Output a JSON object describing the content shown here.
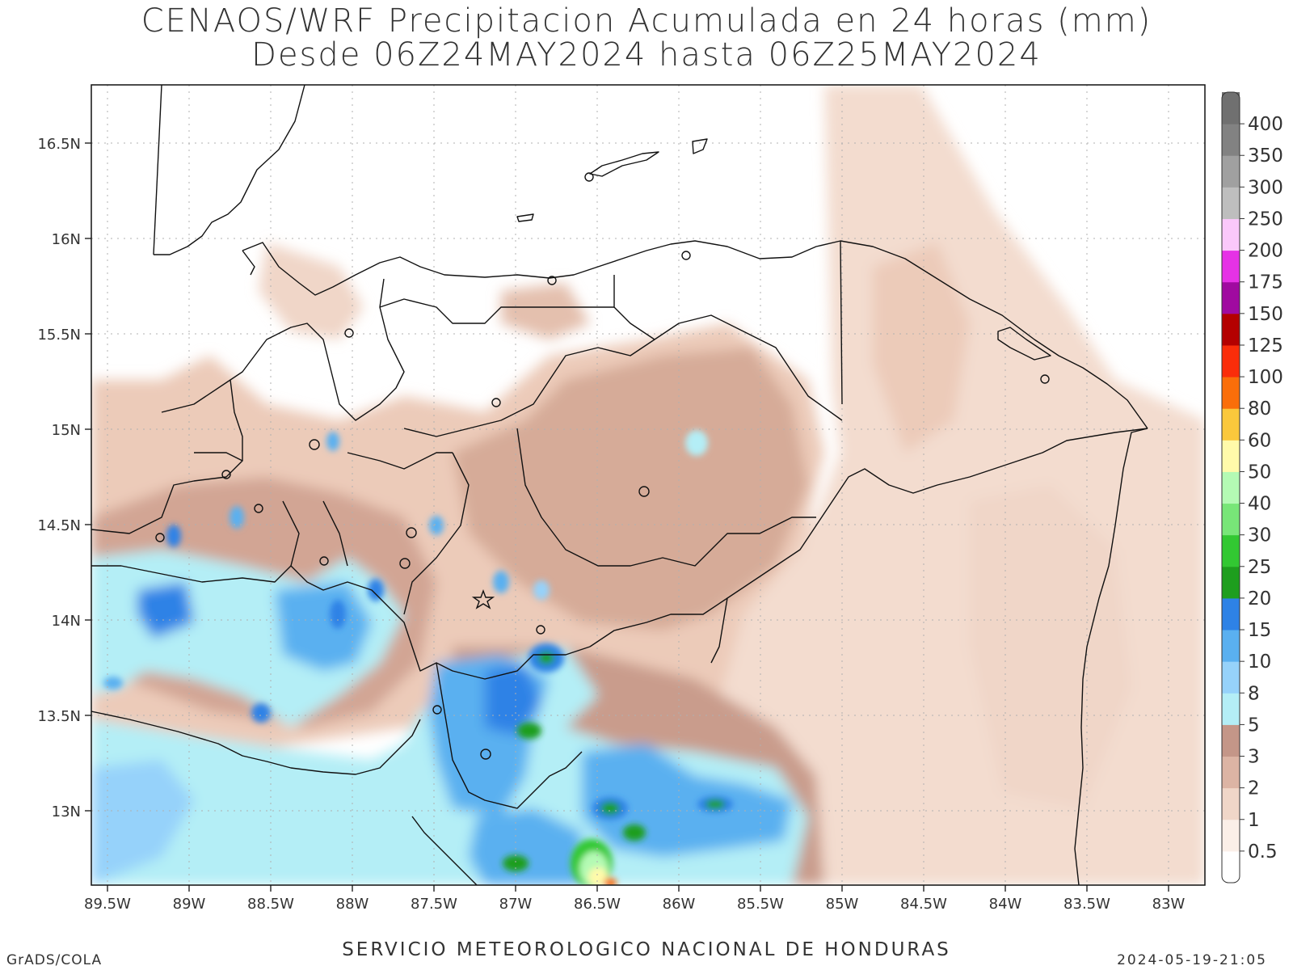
{
  "title": {
    "line1": "CENAOS/WRF Precipitacion Acumulada en 24 horas (mm)",
    "line2": "Desde 06Z24MAY2024 hasta 06Z25MAY2024"
  },
  "map": {
    "lat_ticks": [
      "16.5N",
      "16N",
      "15.5N",
      "15N",
      "14.5N",
      "14N",
      "13.5N",
      "13N"
    ],
    "lon_ticks": [
      "89.5W",
      "89W",
      "88.5W",
      "88W",
      "87.5W",
      "87W",
      "86.5W",
      "86W",
      "85.5W",
      "85W",
      "84.5W",
      "84W",
      "83.5W",
      "83W"
    ]
  },
  "colorbar": {
    "levels": [
      "0.5",
      "1",
      "2",
      "3",
      "5",
      "8",
      "10",
      "15",
      "20",
      "25",
      "30",
      "40",
      "50",
      "60",
      "80",
      "100",
      "125",
      "150",
      "175",
      "200",
      "250",
      "300",
      "350",
      "400"
    ],
    "colors": [
      "#ffffff",
      "#fbefe8",
      "#f0d6c8",
      "#dcb4a4",
      "#c49688",
      "#b4eef6",
      "#96d2fa",
      "#5ab0f0",
      "#2e82e6",
      "#1e9e1e",
      "#32c832",
      "#78e678",
      "#b4fab4",
      "#fffaaa",
      "#fac83c",
      "#fa6e0a",
      "#fa2d0a",
      "#b40000",
      "#a00aa0",
      "#e632e6",
      "#fac8fa",
      "#bebebe",
      "#a0a0a0",
      "#828282",
      "#707070"
    ]
  },
  "footer": {
    "center": "SERVICIO METEOROLOGICO NACIONAL DE HONDURAS",
    "left": "GrADS/COLA",
    "right": "2024-05-19-21:05"
  }
}
